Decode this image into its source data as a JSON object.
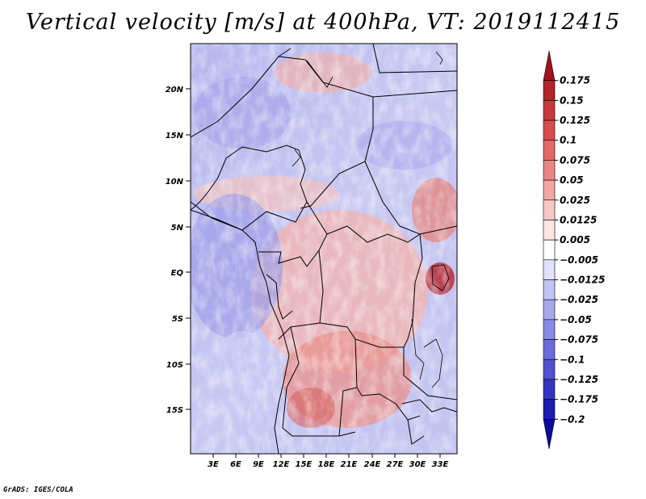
{
  "title": "Vertical velocity [m/s] at 400hPa, VT: 2019112415",
  "credit": "GrADS: IGES/COLA",
  "map": {
    "lat_labels": [
      "20N",
      "15N",
      "10N",
      "5N",
      "EQ",
      "5S",
      "10S",
      "15S"
    ],
    "lon_labels": [
      "3E",
      "6E",
      "9E",
      "12E",
      "15E",
      "18E",
      "21E",
      "24E",
      "27E",
      "30E",
      "33E"
    ]
  },
  "colorbar": {
    "labels": [
      "0.175",
      "0.15",
      "0.125",
      "0.1",
      "0.075",
      "0.05",
      "0.025",
      "0.0125",
      "0.005",
      "−0.005",
      "−0.0125",
      "−0.025",
      "−0.05",
      "−0.075",
      "−0.1",
      "−0.125",
      "−0.175",
      "−0.2"
    ],
    "colors": [
      "#a0141c",
      "#b42328",
      "#c8373a",
      "#d84c4c",
      "#e36866",
      "#ec8683",
      "#f2a6a2",
      "#f8c8c4",
      "#fce6e4",
      "#ffffff",
      "#e2e2fa",
      "#c4c4f4",
      "#a8a8ee",
      "#8a8ae6",
      "#6c6cdc",
      "#5050d0",
      "#3434c2",
      "#1c1cae",
      "#0c0c96"
    ]
  }
}
